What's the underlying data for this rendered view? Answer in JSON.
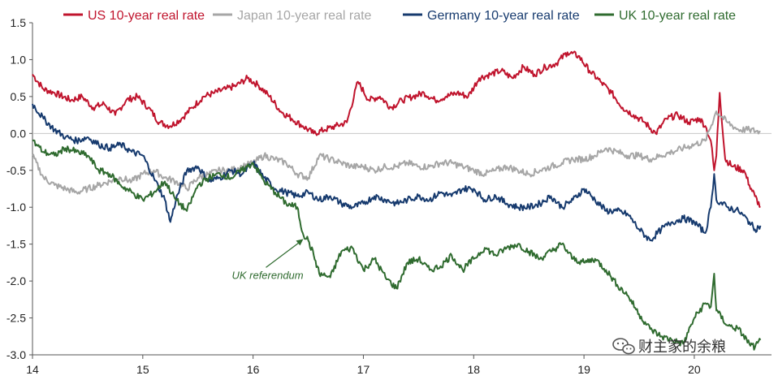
{
  "chart_data": {
    "type": "line",
    "title": "",
    "xlabel": "",
    "ylabel": "",
    "xlim": [
      14,
      20.7
    ],
    "ylim": [
      -3.0,
      1.5
    ],
    "x_ticks": [
      "14",
      "15",
      "16",
      "17",
      "18",
      "19",
      "20"
    ],
    "y_ticks": [
      "1.5",
      "1.0",
      "0.5",
      "0.0",
      "-0.5",
      "-1.0",
      "-1.5",
      "-2.0",
      "-2.5",
      "-3.0"
    ],
    "legend_position": "top",
    "series": [
      {
        "name": "US 10-year real rate",
        "color": "#c0142d",
        "x": [
          14.0,
          14.1,
          14.2,
          14.35,
          14.45,
          14.55,
          14.65,
          14.75,
          14.85,
          14.95,
          15.05,
          15.15,
          15.25,
          15.35,
          15.45,
          15.55,
          15.65,
          15.75,
          15.85,
          15.95,
          16.05,
          16.15,
          16.25,
          16.35,
          16.45,
          16.55,
          16.65,
          16.75,
          16.85,
          16.95,
          17.05,
          17.15,
          17.25,
          17.35,
          17.45,
          17.55,
          17.65,
          17.75,
          17.85,
          17.95,
          18.05,
          18.15,
          18.25,
          18.35,
          18.45,
          18.55,
          18.65,
          18.75,
          18.85,
          18.95,
          19.05,
          19.15,
          19.25,
          19.35,
          19.45,
          19.55,
          19.65,
          19.75,
          19.85,
          19.95,
          20.05,
          20.1,
          20.15,
          20.18,
          20.2,
          20.23,
          20.28,
          20.35,
          20.45,
          20.5,
          20.55,
          20.6
        ],
        "y": [
          0.8,
          0.6,
          0.55,
          0.45,
          0.5,
          0.35,
          0.4,
          0.25,
          0.45,
          0.5,
          0.35,
          0.15,
          0.1,
          0.2,
          0.35,
          0.5,
          0.55,
          0.6,
          0.65,
          0.75,
          0.65,
          0.5,
          0.3,
          0.2,
          0.1,
          0.0,
          0.05,
          0.1,
          0.15,
          0.7,
          0.45,
          0.5,
          0.35,
          0.45,
          0.5,
          0.55,
          0.45,
          0.5,
          0.55,
          0.5,
          0.75,
          0.8,
          0.85,
          0.75,
          0.9,
          0.8,
          0.9,
          0.95,
          1.1,
          1.05,
          0.85,
          0.7,
          0.55,
          0.35,
          0.25,
          0.15,
          0.0,
          0.2,
          0.25,
          0.15,
          0.2,
          0.1,
          -0.1,
          -0.5,
          -0.3,
          0.55,
          -0.35,
          -0.45,
          -0.5,
          -0.7,
          -0.85,
          -1.0
        ]
      },
      {
        "name": "Japan 10-year real rate",
        "color": "#a6a6a6",
        "x": [
          14.0,
          14.1,
          14.2,
          14.3,
          14.4,
          14.5,
          14.6,
          14.7,
          14.8,
          14.9,
          15.0,
          15.1,
          15.2,
          15.3,
          15.4,
          15.5,
          15.6,
          15.7,
          15.8,
          15.9,
          16.0,
          16.1,
          16.2,
          16.3,
          16.4,
          16.5,
          16.6,
          16.7,
          16.8,
          16.9,
          17.0,
          17.1,
          17.2,
          17.3,
          17.4,
          17.5,
          17.6,
          17.7,
          17.8,
          17.9,
          18.0,
          18.1,
          18.2,
          18.3,
          18.4,
          18.5,
          18.6,
          18.7,
          18.8,
          18.9,
          19.0,
          19.1,
          19.2,
          19.3,
          19.4,
          19.5,
          19.6,
          19.7,
          19.8,
          19.9,
          20.0,
          20.1,
          20.2,
          20.3,
          20.4,
          20.5,
          20.6
        ],
        "y": [
          -0.3,
          -0.6,
          -0.7,
          -0.75,
          -0.8,
          -0.75,
          -0.7,
          -0.65,
          -0.6,
          -0.65,
          -0.55,
          -0.5,
          -0.6,
          -0.65,
          -0.75,
          -0.6,
          -0.55,
          -0.5,
          -0.5,
          -0.45,
          -0.4,
          -0.3,
          -0.35,
          -0.4,
          -0.55,
          -0.6,
          -0.3,
          -0.35,
          -0.4,
          -0.45,
          -0.45,
          -0.5,
          -0.45,
          -0.45,
          -0.4,
          -0.45,
          -0.45,
          -0.4,
          -0.4,
          -0.45,
          -0.5,
          -0.55,
          -0.5,
          -0.45,
          -0.5,
          -0.55,
          -0.5,
          -0.45,
          -0.4,
          -0.35,
          -0.35,
          -0.3,
          -0.2,
          -0.25,
          -0.3,
          -0.3,
          -0.35,
          -0.3,
          -0.25,
          -0.2,
          -0.15,
          -0.1,
          0.3,
          0.15,
          0.05,
          0.05,
          0.02
        ]
      },
      {
        "name": "Germany 10-year real rate",
        "color": "#163a6e",
        "x": [
          14.0,
          14.1,
          14.2,
          14.3,
          14.4,
          14.5,
          14.6,
          14.7,
          14.8,
          14.9,
          15.0,
          15.1,
          15.2,
          15.25,
          15.3,
          15.4,
          15.5,
          15.6,
          15.7,
          15.8,
          15.9,
          16.0,
          16.1,
          16.2,
          16.3,
          16.4,
          16.5,
          16.6,
          16.7,
          16.8,
          16.9,
          17.0,
          17.1,
          17.2,
          17.3,
          17.4,
          17.5,
          17.6,
          17.7,
          17.8,
          17.9,
          18.0,
          18.1,
          18.2,
          18.3,
          18.4,
          18.5,
          18.6,
          18.7,
          18.8,
          18.9,
          19.0,
          19.1,
          19.2,
          19.3,
          19.4,
          19.5,
          19.6,
          19.7,
          19.8,
          19.9,
          20.0,
          20.1,
          20.15,
          20.18,
          20.2,
          20.3,
          20.4,
          20.5,
          20.55,
          20.6
        ],
        "y": [
          0.4,
          0.2,
          0.05,
          -0.05,
          -0.1,
          -0.05,
          -0.15,
          -0.2,
          -0.15,
          -0.25,
          -0.3,
          -0.6,
          -0.9,
          -1.2,
          -0.9,
          -0.5,
          -0.45,
          -0.65,
          -0.6,
          -0.5,
          -0.55,
          -0.4,
          -0.6,
          -0.75,
          -0.8,
          -0.85,
          -0.8,
          -0.9,
          -0.85,
          -0.95,
          -1.0,
          -0.95,
          -0.85,
          -0.9,
          -0.95,
          -0.9,
          -0.85,
          -0.9,
          -0.8,
          -0.85,
          -0.75,
          -0.75,
          -0.9,
          -0.85,
          -0.95,
          -1.0,
          -1.0,
          -0.95,
          -0.85,
          -1.0,
          -0.9,
          -0.75,
          -0.9,
          -1.05,
          -1.05,
          -1.1,
          -1.3,
          -1.45,
          -1.3,
          -1.2,
          -1.15,
          -1.2,
          -1.35,
          -1.0,
          -0.55,
          -0.9,
          -1.0,
          -1.05,
          -1.2,
          -1.3,
          -1.25
        ]
      },
      {
        "name": "UK 10-year real rate",
        "color": "#2f6b2f",
        "x": [
          14.0,
          14.1,
          14.2,
          14.3,
          14.4,
          14.5,
          14.6,
          14.7,
          14.8,
          14.9,
          15.0,
          15.1,
          15.2,
          15.3,
          15.4,
          15.5,
          15.6,
          15.7,
          15.8,
          15.9,
          16.0,
          16.1,
          16.2,
          16.3,
          16.4,
          16.45,
          16.5,
          16.55,
          16.6,
          16.7,
          16.8,
          16.9,
          17.0,
          17.1,
          17.2,
          17.3,
          17.4,
          17.5,
          17.6,
          17.7,
          17.8,
          17.9,
          18.0,
          18.1,
          18.2,
          18.3,
          18.4,
          18.5,
          18.6,
          18.7,
          18.8,
          18.9,
          19.0,
          19.1,
          19.2,
          19.3,
          19.4,
          19.5,
          19.6,
          19.7,
          19.8,
          19.9,
          20.0,
          20.1,
          20.15,
          20.18,
          20.2,
          20.3,
          20.4,
          20.5,
          20.55,
          20.6
        ],
        "y": [
          -0.1,
          -0.25,
          -0.3,
          -0.2,
          -0.25,
          -0.3,
          -0.5,
          -0.55,
          -0.7,
          -0.8,
          -0.9,
          -0.8,
          -0.65,
          -0.9,
          -1.05,
          -0.7,
          -0.6,
          -0.55,
          -0.6,
          -0.5,
          -0.4,
          -0.65,
          -0.8,
          -0.95,
          -1.0,
          -1.35,
          -1.45,
          -1.65,
          -1.9,
          -1.95,
          -1.6,
          -1.55,
          -1.85,
          -1.7,
          -1.95,
          -2.1,
          -1.75,
          -1.7,
          -1.85,
          -1.8,
          -1.65,
          -1.85,
          -1.7,
          -1.55,
          -1.65,
          -1.55,
          -1.5,
          -1.6,
          -1.7,
          -1.6,
          -1.5,
          -1.7,
          -1.75,
          -1.7,
          -1.85,
          -2.05,
          -2.2,
          -2.45,
          -2.65,
          -2.75,
          -2.8,
          -2.85,
          -2.5,
          -2.3,
          -2.35,
          -1.9,
          -2.4,
          -2.6,
          -2.65,
          -2.85,
          -2.9,
          -2.8
        ]
      }
    ],
    "annotations": [
      {
        "text": "UK referendum",
        "x": 16.47,
        "y": -1.42,
        "color": "#2f6b2f"
      }
    ]
  },
  "watermark": {
    "text": "财主家的余粮",
    "icon": "wechat-icon"
  }
}
